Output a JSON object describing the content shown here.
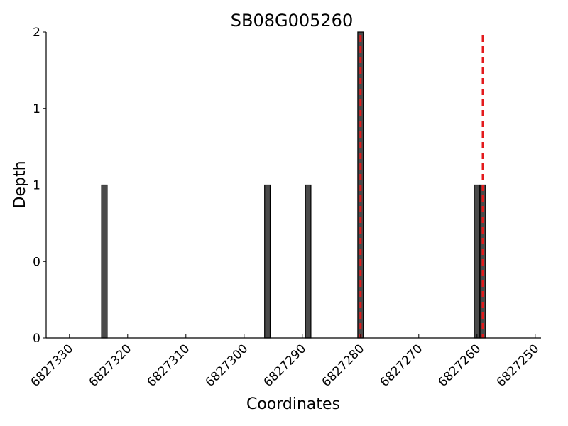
{
  "chart_data": {
    "type": "bar",
    "title": "SB08G005260",
    "xlabel": "Coordinates",
    "ylabel": "Depth",
    "xlim": [
      6827334,
      6827249
    ],
    "x_reversed": true,
    "ylim": [
      0,
      2
    ],
    "x_ticks": [
      6827330,
      6827320,
      6827310,
      6827300,
      6827290,
      6827280,
      6827270,
      6827260,
      6827250
    ],
    "x_tick_labels": [
      "6827330",
      "6827320",
      "6827310",
      "6827300",
      "6827290",
      "6827280",
      "6827270",
      "6827260",
      "6827250"
    ],
    "y_ticks": [
      0,
      0.5,
      1,
      1.5,
      2
    ],
    "y_tick_labels": [
      "0",
      "0",
      "1",
      "1",
      "2"
    ],
    "bars": [
      {
        "x": 6827324,
        "value": 1
      },
      {
        "x": 6827296,
        "value": 1
      },
      {
        "x": 6827289,
        "value": 1
      },
      {
        "x": 6827280,
        "value": 2
      },
      {
        "x": 6827260,
        "value": 1
      },
      {
        "x": 6827259,
        "value": 1
      }
    ],
    "markers": [
      {
        "x": 6827280,
        "color": "#e31a1c",
        "style": "dashed"
      },
      {
        "x": 6827259,
        "color": "#e31a1c",
        "style": "dashed"
      }
    ],
    "bar_color": "#4a4a4a",
    "grid": false,
    "legend": "none"
  }
}
